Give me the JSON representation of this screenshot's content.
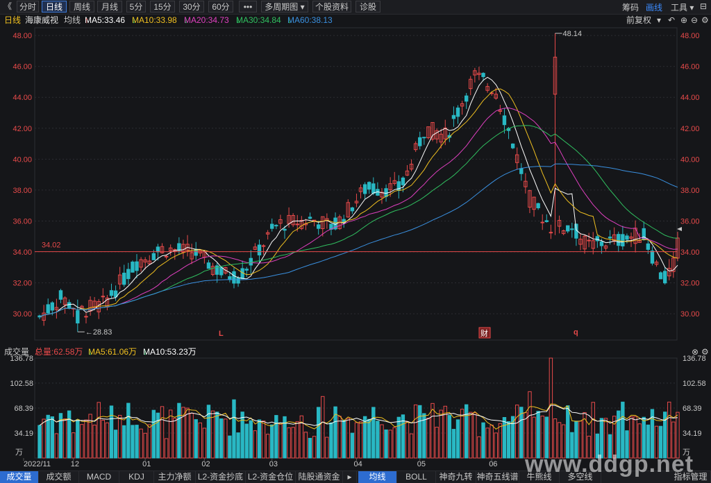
{
  "toolbar": {
    "back_icon": "double-chevron-left-icon",
    "tabs": [
      {
        "label": "分时",
        "active": false
      },
      {
        "label": "日线",
        "active": true
      },
      {
        "label": "周线",
        "active": false
      },
      {
        "label": "月线",
        "active": false
      },
      {
        "label": "5分",
        "active": false
      },
      {
        "label": "15分",
        "active": false
      },
      {
        "label": "30分",
        "active": false
      },
      {
        "label": "60分",
        "active": false
      }
    ],
    "more_label": "•••",
    "multi_period_label": "多周期图",
    "stock_info_label": "个股资料",
    "diagnose_label": "诊股",
    "right": [
      {
        "label": "筹码",
        "active": false
      },
      {
        "label": "画线",
        "active": true
      },
      {
        "label": "工具",
        "active": false
      }
    ]
  },
  "info": {
    "period": "日线",
    "stock_name": "海康威视",
    "avg_label": "均线",
    "ma5": "MA5:33.46",
    "ma10": "MA10:33.98",
    "ma20": "MA20:34.73",
    "ma30": "MA30:34.84",
    "ma60": "MA60:38.13",
    "ma5_arrow": "↑",
    "ma10_arrow": "↓",
    "ma20_arrow": "↓",
    "ma30_arrow": "↓",
    "ma60_arrow": "↓",
    "adjust": "前复权"
  },
  "volume_info": {
    "label": "成交量",
    "total": "总量:62.58万",
    "total_arrow": "↑",
    "ma5": "MA5:61.06万",
    "ma5_arrow": "↓",
    "ma10": "MA10:53.23万",
    "ma10_arrow": "↓"
  },
  "bottom_tabs": [
    {
      "label": "成交量",
      "active": true
    },
    {
      "label": "成交额",
      "active": false
    },
    {
      "label": "MACD",
      "active": false
    },
    {
      "label": "KDJ",
      "active": false
    },
    {
      "label": "主力净额",
      "active": false
    },
    {
      "label": "L2-资金抄底",
      "active": false
    },
    {
      "label": "L2-资金仓位",
      "active": false
    },
    {
      "label": "陆股通资金",
      "active": false
    },
    {
      "label": "均线",
      "active": true
    },
    {
      "label": "BOLL",
      "active": false
    },
    {
      "label": "神奇九转",
      "active": false
    },
    {
      "label": "神奇五线谱",
      "active": false
    },
    {
      "label": "牛熊线",
      "active": false
    },
    {
      "label": "多空线",
      "active": false
    },
    {
      "label": "指标管理",
      "active": false
    }
  ],
  "watermark": "www.ddgp.net",
  "colors": {
    "up": "#e84a4a",
    "down": "#29b8c4",
    "ma5": "#ffffff",
    "ma10": "#f0c020",
    "ma20": "#e040c0",
    "ma30": "#30c060",
    "ma60": "#3a90e0",
    "grid": "#2c2d33",
    "price_axis": "#e84a4a"
  },
  "chart_data": [
    {
      "type": "candlestick",
      "y_ticks": [
        30,
        32,
        34,
        36,
        38,
        40,
        42,
        44,
        46,
        48
      ],
      "y_tick_labels": [
        "30.00",
        "32.00",
        "34.00",
        "36.00",
        "38.00",
        "40.00",
        "42.00",
        "44.00",
        "46.00",
        "48.00"
      ],
      "ylim": [
        28.3,
        48.5
      ],
      "x_labels": [
        "2022/11",
        "12",
        "01",
        "02",
        "03",
        "04",
        "05",
        "06"
      ],
      "annotations": {
        "high": "48.14",
        "low": "28.83",
        "current_price": "34.02",
        "event_marks": [
          "L",
          "财",
          "q"
        ]
      },
      "ma_values": {
        "MA5": 33.46,
        "MA10": 33.98,
        "MA20": 34.73,
        "MA30": 34.84,
        "MA60": 38.13
      },
      "grid": true
    },
    {
      "type": "bar",
      "title": "成交量",
      "unit": "万",
      "y_ticks": [
        34.19,
        68.39,
        102.58,
        136.78
      ],
      "y_tick_labels": [
        "34.19",
        "68.39",
        "102.58",
        "136.78"
      ],
      "ylim": [
        0,
        136.78
      ],
      "series": [
        {
          "name": "总量",
          "last": 62.58
        },
        {
          "name": "MA5",
          "last": 61.06
        },
        {
          "name": "MA10",
          "last": 53.23
        }
      ]
    }
  ]
}
